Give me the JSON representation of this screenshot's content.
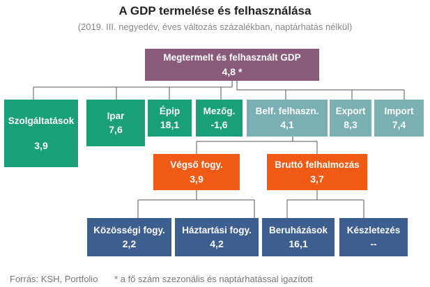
{
  "title": "A GDP termelése és felhasználása",
  "subtitle": "(2019. III. negyedév, éves változás százalékban, naptárhatás nélkül)",
  "colors": {
    "root": "#8a5a7a",
    "production": "#1aa079",
    "use": "#7aafb3",
    "use_components": "#f05a14",
    "final": "#3d5f8f"
  },
  "nodes": {
    "root": {
      "label": "Megtermelt és felhasznált GDP",
      "value": "4,8 *"
    },
    "szolg": {
      "label": "Szolgáltatások",
      "value": "3,9"
    },
    "ipar": {
      "label": "Ipar",
      "value": "7,6"
    },
    "epip": {
      "label": "Épip",
      "value": "18,1"
    },
    "mezog": {
      "label": "Mezőg.",
      "value": "-1,6"
    },
    "belf": {
      "label": "Belf. felhaszn.",
      "value": "4,1"
    },
    "export": {
      "label": "Export",
      "value": "8,3"
    },
    "import": {
      "label": "Import",
      "value": "7,4"
    },
    "vegso": {
      "label": "Végső fogy.",
      "value": "3,9"
    },
    "brutto": {
      "label": "Bruttó felhalmozás",
      "value": "3,7"
    },
    "kozossegi": {
      "label": "Közösségi fogy.",
      "value": "2,2"
    },
    "haztartasi": {
      "label": "Háztartási fogy.",
      "value": "4,2"
    },
    "beruhazasok": {
      "label": "Beruházások",
      "value": "16,1"
    },
    "keszletezes": {
      "label": "Készletezés",
      "value": "--"
    }
  },
  "footer": {
    "source": "Forrás: KSH, Portfolio",
    "note": "* a fő szám szezonális és naptárhatással igazított"
  }
}
